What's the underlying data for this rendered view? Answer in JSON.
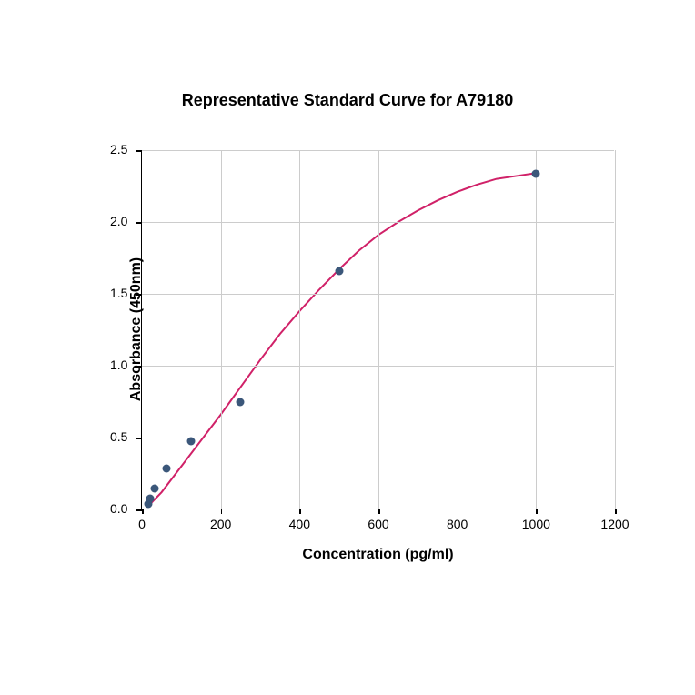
{
  "chart": {
    "type": "scatter",
    "title": "Representative Standard Curve for A79180",
    "title_fontsize": 18,
    "xlabel": "Concentration (pg/ml)",
    "ylabel": "Absorbance (450nm)",
    "label_fontsize": 16,
    "tick_fontsize": 14,
    "xlim": [
      0,
      1200
    ],
    "ylim": [
      0,
      2.5
    ],
    "xtick_step": 200,
    "ytick_step": 0.5,
    "xticks": [
      0,
      200,
      400,
      600,
      800,
      1000,
      1200
    ],
    "yticks": [
      "0.0",
      "0.5",
      "1.0",
      "1.5",
      "2.0",
      "2.5"
    ],
    "background_color": "#ffffff",
    "grid_color": "#cccccc",
    "axis_color": "#000000",
    "data_points": [
      {
        "x": 15,
        "y": 0.03
      },
      {
        "x": 20,
        "y": 0.07
      },
      {
        "x": 32,
        "y": 0.14
      },
      {
        "x": 62,
        "y": 0.28
      },
      {
        "x": 125,
        "y": 0.47
      },
      {
        "x": 250,
        "y": 0.74
      },
      {
        "x": 500,
        "y": 1.65
      },
      {
        "x": 1000,
        "y": 2.33
      }
    ],
    "marker_color": "#3b577a",
    "marker_size": 9,
    "curve_color": "#d02168",
    "curve_width": 2.0,
    "curve_points": [
      {
        "x": 15,
        "y": 0.02
      },
      {
        "x": 50,
        "y": 0.12
      },
      {
        "x": 100,
        "y": 0.3
      },
      {
        "x": 150,
        "y": 0.48
      },
      {
        "x": 200,
        "y": 0.66
      },
      {
        "x": 250,
        "y": 0.85
      },
      {
        "x": 300,
        "y": 1.04
      },
      {
        "x": 350,
        "y": 1.22
      },
      {
        "x": 400,
        "y": 1.38
      },
      {
        "x": 450,
        "y": 1.53
      },
      {
        "x": 500,
        "y": 1.67
      },
      {
        "x": 550,
        "y": 1.8
      },
      {
        "x": 600,
        "y": 1.91
      },
      {
        "x": 650,
        "y": 2.0
      },
      {
        "x": 700,
        "y": 2.08
      },
      {
        "x": 750,
        "y": 2.15
      },
      {
        "x": 800,
        "y": 2.21
      },
      {
        "x": 850,
        "y": 2.26
      },
      {
        "x": 900,
        "y": 2.3
      },
      {
        "x": 950,
        "y": 2.32
      },
      {
        "x": 1000,
        "y": 2.34
      }
    ]
  }
}
